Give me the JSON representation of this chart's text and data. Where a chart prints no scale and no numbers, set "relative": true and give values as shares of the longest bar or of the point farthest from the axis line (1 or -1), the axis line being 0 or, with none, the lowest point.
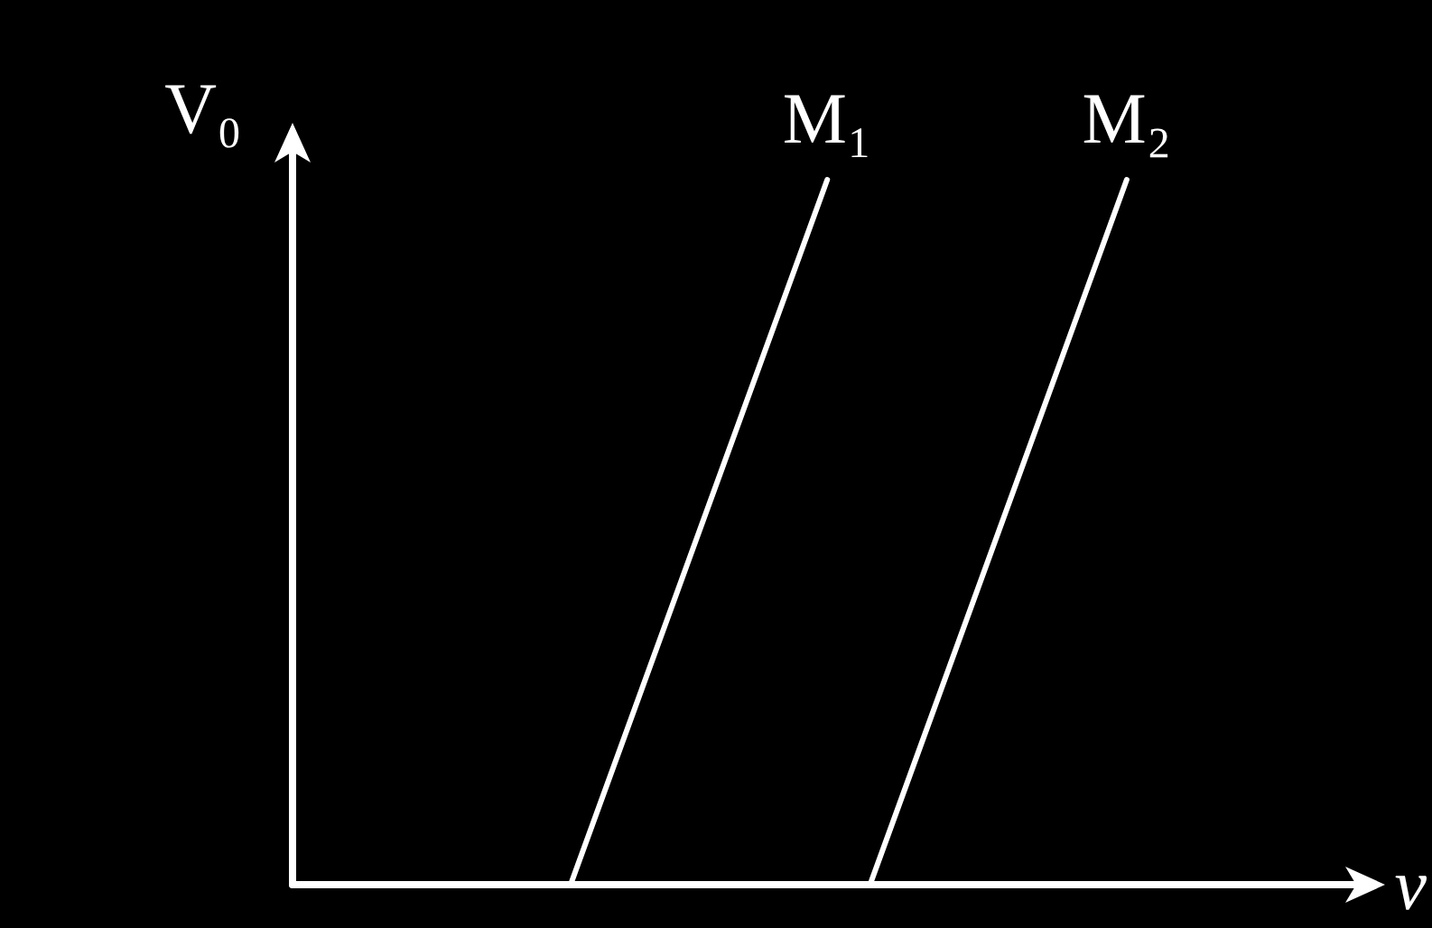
{
  "chart_data": {
    "type": "line",
    "relative": true,
    "xlabel": "ν",
    "ylabel": "V₀",
    "grid": false,
    "legend": false,
    "line_style": "solid",
    "categories": [
      null,
      null,
      null,
      null,
      null,
      null,
      null,
      null,
      null,
      null,
      null,
      null,
      null,
      null,
      null,
      null,
      null,
      null,
      null,
      null,
      null,
      null,
      null,
      null,
      null,
      null,
      null,
      null,
      null,
      null,
      null,
      null,
      null,
      null,
      null,
      null,
      null,
      null,
      null,
      null,
      null,
      null,
      null,
      null,
      null,
      null,
      null,
      null,
      null,
      null,
      null
    ],
    "series": [
      {
        "name": "M₁",
        "color": "#ffffff",
        "values": [
          null,
          null,
          null,
          null,
          null,
          null,
          null,
          null,
          null,
          null,
          null,
          null,
          null,
          0,
          null,
          null,
          null,
          null,
          null,
          null,
          null,
          null,
          null,
          null,
          null,
          1,
          null,
          null,
          null,
          null,
          null,
          null,
          null,
          null,
          null,
          null,
          null,
          null,
          null,
          null,
          null,
          null,
          null,
          null,
          null,
          null,
          null,
          null,
          null,
          null,
          null
        ]
      },
      {
        "name": "M₂",
        "color": "#ffffff",
        "values": [
          null,
          null,
          null,
          null,
          null,
          null,
          null,
          null,
          null,
          null,
          null,
          null,
          null,
          null,
          null,
          null,
          null,
          null,
          null,
          null,
          null,
          null,
          null,
          null,
          null,
          null,
          null,
          0,
          null,
          null,
          null,
          null,
          null,
          null,
          null,
          null,
          null,
          null,
          null,
          1,
          null,
          null,
          null,
          null,
          null,
          null,
          null,
          null,
          null,
          null,
          null
        ]
      }
    ]
  }
}
